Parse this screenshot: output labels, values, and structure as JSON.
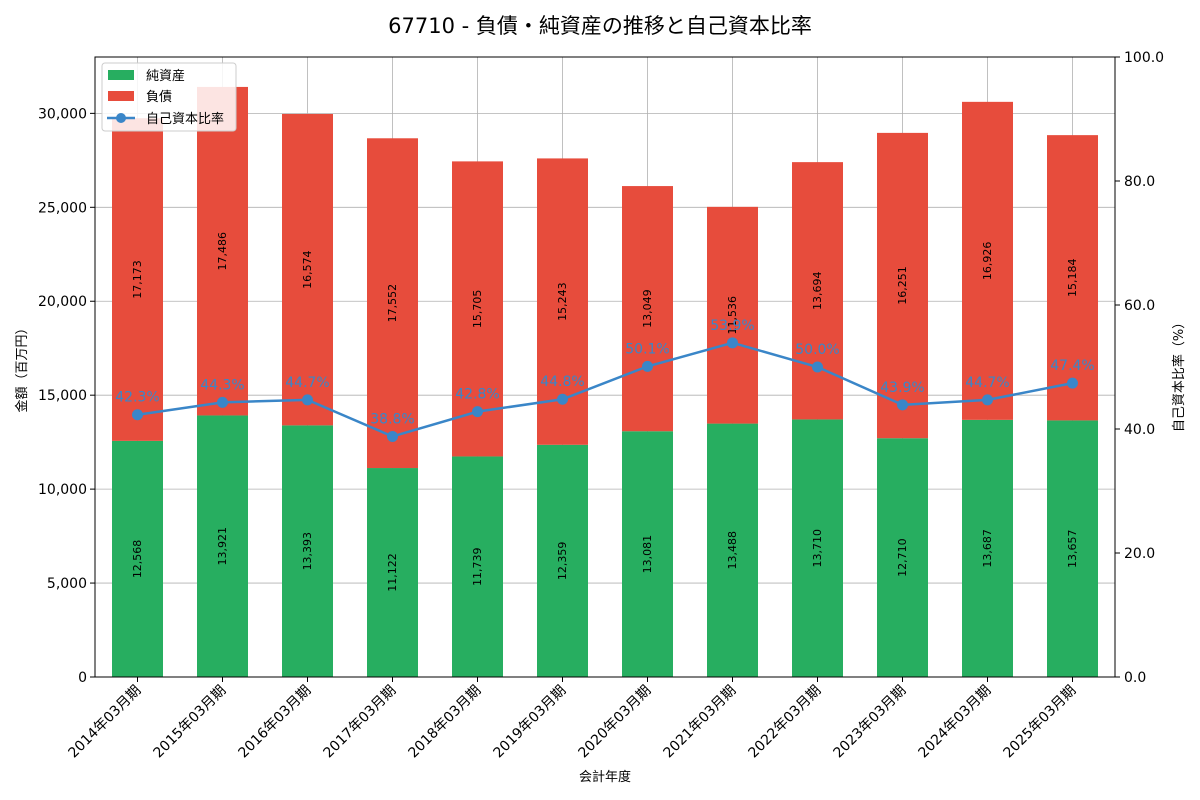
{
  "chart_data": {
    "type": "bar",
    "stacked": true,
    "title": "67710 - 負債・純資産の推移と自己資本比率",
    "xlabel": "会計年度",
    "ylabel": "金額（百万円）",
    "y2label": "自己資本比率（%）",
    "ylim": [
      0,
      33000
    ],
    "y2lim": [
      0,
      100
    ],
    "yticks": [
      0,
      5000,
      10000,
      15000,
      20000,
      25000,
      30000
    ],
    "yticks_text": [
      "0",
      "5,000",
      "10,000",
      "15,000",
      "20,000",
      "25,000",
      "30,000"
    ],
    "y2ticks": [
      0,
      20,
      40,
      60,
      80,
      100
    ],
    "y2ticks_text": [
      "0.0",
      "20.0",
      "40.0",
      "60.0",
      "80.0",
      "100.0"
    ],
    "grid": true,
    "legend_position": "top-left",
    "categories": [
      "2014年03月期",
      "2015年03月期",
      "2016年03月期",
      "2017年03月期",
      "2018年03月期",
      "2019年03月期",
      "2020年03月期",
      "2021年03月期",
      "2022年03月期",
      "2023年03月期",
      "2024年03月期",
      "2025年03月期"
    ],
    "series": [
      {
        "name": "純資産",
        "type": "bar",
        "color": "#27ae60",
        "values": [
          12568,
          13921,
          13393,
          11122,
          11739,
          12359,
          13081,
          13488,
          13710,
          12710,
          13687,
          13657
        ],
        "labels": [
          "12,568",
          "13,921",
          "13,393",
          "11,122",
          "11,739",
          "12,359",
          "13,081",
          "13,488",
          "13,710",
          "12,710",
          "13,687",
          "13,657"
        ]
      },
      {
        "name": "負債",
        "type": "bar",
        "color": "#e74c3c",
        "values": [
          17173,
          17486,
          16574,
          17552,
          15705,
          15243,
          13049,
          11536,
          13694,
          16251,
          16926,
          15184
        ],
        "labels": [
          "17,173",
          "17,486",
          "16,574",
          "17,552",
          "15,705",
          "15,243",
          "13,049",
          "11,536",
          "13,694",
          "16,251",
          "16,926",
          "15,184"
        ]
      },
      {
        "name": "自己資本比率",
        "type": "line",
        "axis": "right",
        "color": "#3a86c8",
        "values": [
          42.3,
          44.3,
          44.7,
          38.8,
          42.8,
          44.8,
          50.1,
          53.9,
          50.0,
          43.9,
          44.7,
          47.4
        ],
        "labels": [
          "42.3%",
          "44.3%",
          "44.7%",
          "38.8%",
          "42.8%",
          "44.8%",
          "50.1%",
          "53.9%",
          "50.0%",
          "43.9%",
          "44.7%",
          "47.4%"
        ]
      }
    ]
  }
}
